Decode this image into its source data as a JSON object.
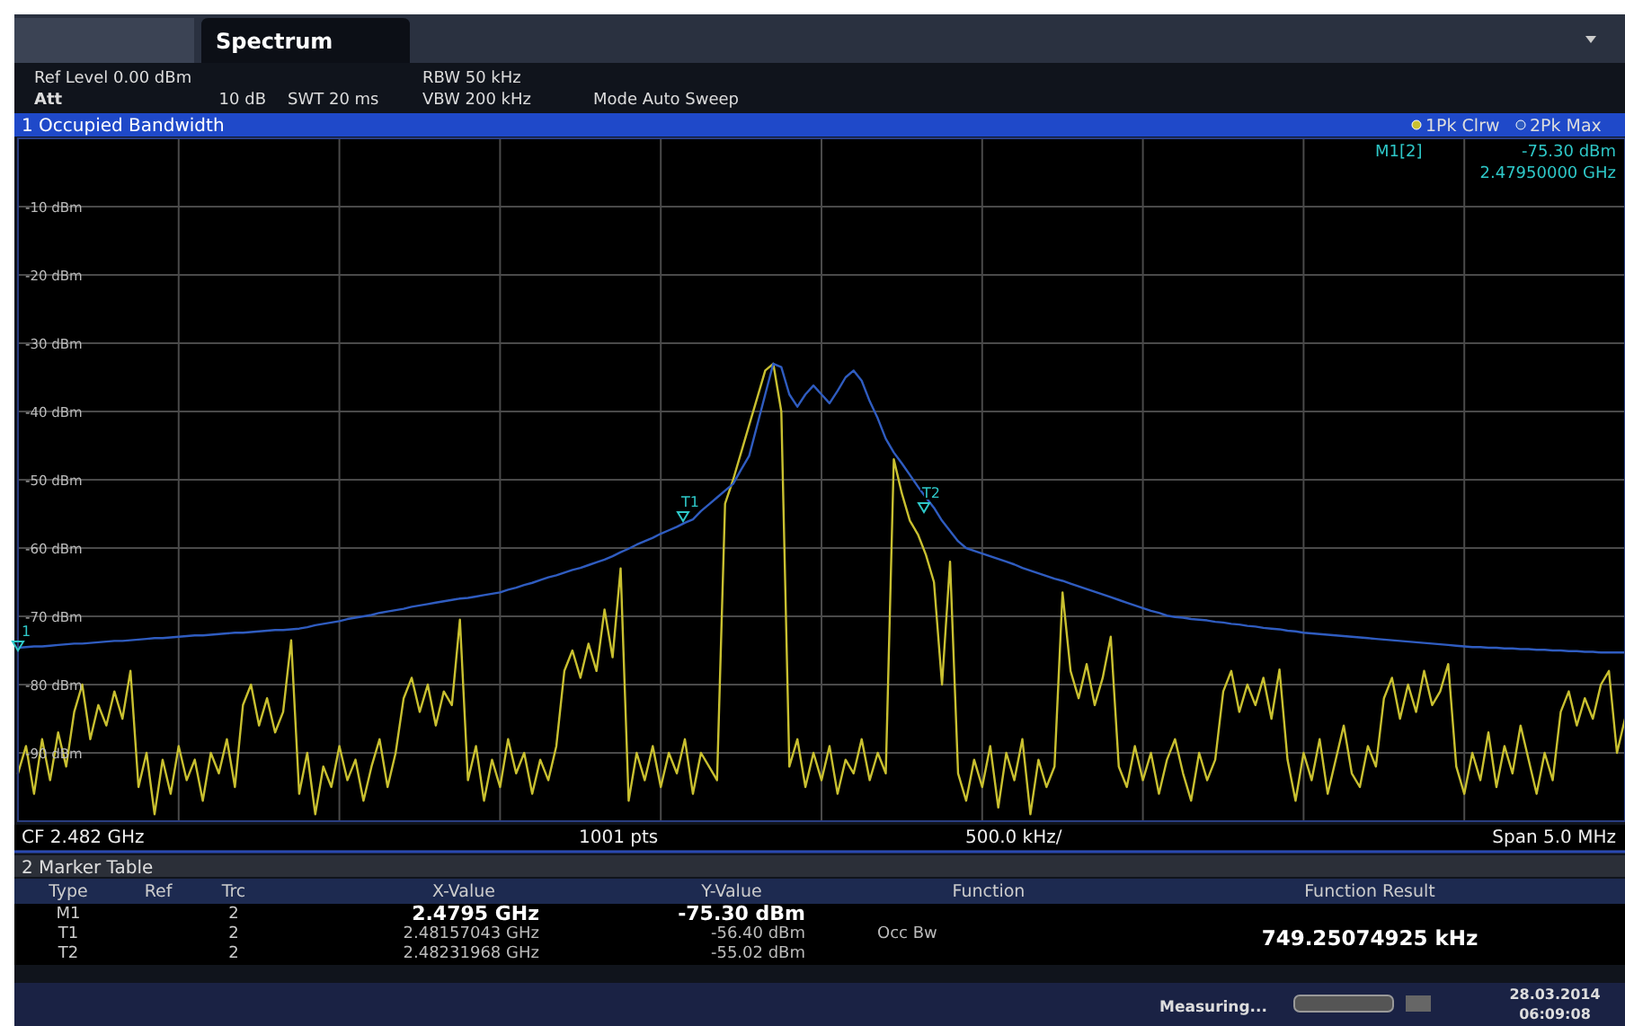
{
  "chart_data": {
    "type": "line",
    "title": "1 Occupied Bandwidth",
    "categories": [
      null,
      null,
      null,
      null,
      null,
      null,
      null,
      null,
      null,
      null,
      null,
      null,
      null,
      null,
      null,
      null,
      null,
      null,
      null,
      null,
      null,
      null,
      null,
      null,
      null,
      null,
      null,
      null,
      null,
      null,
      null,
      null,
      null,
      null,
      null,
      null,
      null,
      null,
      null,
      null,
      null,
      null,
      null,
      null,
      null,
      null,
      null,
      null,
      null,
      null,
      null,
      null,
      null,
      null,
      null,
      null,
      null,
      null,
      null,
      null,
      null,
      null,
      null,
      null,
      null,
      null,
      null,
      null,
      null,
      null,
      null,
      null,
      null,
      null,
      null,
      null,
      null,
      null,
      null,
      null,
      null,
      null,
      null,
      null,
      null,
      null,
      null,
      null,
      null,
      null,
      null,
      null,
      null,
      null,
      null,
      null,
      null,
      null,
      null,
      null,
      null,
      null,
      null,
      null,
      null,
      null,
      null,
      null,
      null,
      null,
      null,
      null,
      null,
      null,
      null,
      null,
      null,
      null,
      null,
      null,
      null,
      null,
      null,
      null,
      null,
      null,
      null,
      null,
      null,
      null,
      null,
      null,
      null,
      null,
      null,
      null,
      null,
      null,
      null,
      null,
      null,
      null,
      null,
      null,
      null,
      null,
      null,
      null,
      null,
      null,
      null,
      null,
      null,
      null,
      null,
      null,
      null,
      null,
      null,
      null,
      null,
      null,
      null,
      null,
      null,
      null,
      null,
      null,
      null,
      null,
      null,
      null,
      null,
      null,
      null,
      null,
      null,
      null,
      null,
      null,
      null,
      null,
      null,
      null,
      null,
      null,
      null,
      null,
      null,
      null,
      null,
      null,
      null,
      null,
      null,
      null,
      null,
      null,
      null,
      null,
      null
    ],
    "ylim": [
      -100,
      0
    ],
    "yticks": [
      {
        "value": -10,
        "label": "-10 dBm"
      },
      {
        "value": -20,
        "label": "-20 dBm"
      },
      {
        "value": -30,
        "label": "-30 dBm"
      },
      {
        "value": -40,
        "label": "-40 dBm"
      },
      {
        "value": -50,
        "label": "-50 dBm"
      },
      {
        "value": -60,
        "label": "-60 dBm"
      },
      {
        "value": -70,
        "label": "-70 dBm"
      },
      {
        "value": -80,
        "label": "-80 dBm"
      },
      {
        "value": -90,
        "label": "-90 dBm"
      }
    ],
    "tick_labels": "y",
    "grid": true,
    "legend": "top right",
    "series": [
      {
        "name": "1Pk Clrw",
        "color": "#c9c030",
        "values": [
          -93,
          -89,
          -96,
          -88,
          -94,
          -87,
          -92,
          -84,
          -80,
          -88,
          -83,
          -86,
          -81,
          -85,
          -78,
          -95,
          -90,
          -99,
          -91,
          -96,
          -89,
          -94,
          -91,
          -97,
          -90,
          -93,
          -88,
          -95,
          -83,
          -80,
          -86,
          -82,
          -87,
          -84,
          -73.5,
          -96,
          -90,
          -99,
          -92,
          -95,
          -89,
          -94,
          -91,
          -97,
          -92,
          -88,
          -95,
          -90,
          -82,
          -79,
          -84,
          -80,
          -86,
          -81,
          -83,
          -70.5,
          -94,
          -89,
          -97,
          -91,
          -95,
          -88,
          -93,
          -90,
          -96,
          -91,
          -94,
          -89,
          -78,
          -75,
          -79,
          -74,
          -78,
          -69,
          -76,
          -63,
          -97,
          -90,
          -94,
          -89,
          -95,
          -90,
          -93,
          -88,
          -96,
          -90,
          -92,
          -94,
          -53.5,
          -50,
          -46,
          -42,
          -38,
          -34,
          -33,
          -40,
          -92,
          -88,
          -95,
          -90,
          -94,
          -89,
          -96,
          -91,
          -93,
          -88,
          -94,
          -90,
          -93,
          -47,
          -52,
          -56,
          -58,
          -61,
          -65,
          -80,
          -62,
          -93,
          -97,
          -91,
          -95,
          -89,
          -98,
          -90,
          -94,
          -88,
          -99,
          -91,
          -95,
          -92,
          -66.5,
          -78,
          -82,
          -77,
          -83,
          -79,
          -73,
          -92,
          -95,
          -89,
          -94,
          -90,
          -96,
          -91,
          -88,
          -93,
          -97,
          -90,
          -94,
          -91,
          -81,
          -78,
          -84,
          -80,
          -83,
          -79,
          -85,
          -77.8,
          -91,
          -97,
          -90,
          -94,
          -88,
          -96,
          -91,
          -86,
          -93,
          -95,
          -89,
          -92,
          -82,
          -79,
          -85,
          -80,
          -84,
          -78,
          -83,
          -81,
          -77,
          -92,
          -96,
          -90,
          -94,
          -87,
          -95,
          -89,
          -93,
          -86,
          -91,
          -96,
          -90,
          -94,
          -84,
          -81,
          -86,
          -82,
          -85,
          -80,
          -78,
          -90,
          -85
        ]
      },
      {
        "name": "2Pk Max",
        "color": "#2f5cc0",
        "values": [
          -74.6,
          -74.5,
          -74.4,
          -74.4,
          -74.3,
          -74.2,
          -74.1,
          -74.0,
          -74.0,
          -73.9,
          -73.8,
          -73.7,
          -73.6,
          -73.6,
          -73.5,
          -73.4,
          -73.3,
          -73.2,
          -73.2,
          -73.1,
          -73.0,
          -72.9,
          -72.8,
          -72.8,
          -72.7,
          -72.6,
          -72.5,
          -72.4,
          -72.4,
          -72.3,
          -72.2,
          -72.1,
          -72.0,
          -72.0,
          -71.9,
          -71.8,
          -71.6,
          -71.3,
          -71.1,
          -70.9,
          -70.7,
          -70.4,
          -70.2,
          -70.0,
          -69.8,
          -69.5,
          -69.3,
          -69.1,
          -68.9,
          -68.6,
          -68.4,
          -68.2,
          -68.0,
          -67.8,
          -67.6,
          -67.4,
          -67.3,
          -67.1,
          -66.9,
          -66.7,
          -66.5,
          -66.1,
          -65.8,
          -65.4,
          -65.1,
          -64.7,
          -64.3,
          -64.0,
          -63.6,
          -63.2,
          -62.9,
          -62.5,
          -62.1,
          -61.7,
          -61.2,
          -60.6,
          -60.1,
          -59.5,
          -59.0,
          -58.5,
          -57.9,
          -57.4,
          -56.9,
          -56.3,
          -55.8,
          -54.6,
          -53.6,
          -52.6,
          -51.6,
          -50.6,
          -48.5,
          -46.5,
          -42,
          -37.5,
          -33,
          -33.5,
          -37.5,
          -39.3,
          -37.5,
          -36.2,
          -37.5,
          -38.8,
          -37,
          -35,
          -34,
          -35.5,
          -38.5,
          -41,
          -44,
          -46,
          -47.6,
          -49.3,
          -51,
          -52.6,
          -54.1,
          -56,
          -57.5,
          -59,
          -60,
          -60.4,
          -60.8,
          -61.2,
          -61.6,
          -62.0,
          -62.4,
          -62.9,
          -63.3,
          -63.7,
          -64.1,
          -64.5,
          -64.8,
          -65.2,
          -65.6,
          -66.0,
          -66.4,
          -66.8,
          -67.2,
          -67.6,
          -68.0,
          -68.4,
          -68.8,
          -69.2,
          -69.5,
          -69.9,
          -70.1,
          -70.2,
          -70.4,
          -70.5,
          -70.6,
          -70.8,
          -70.9,
          -71.1,
          -71.2,
          -71.4,
          -71.5,
          -71.7,
          -71.8,
          -71.9,
          -72.1,
          -72.2,
          -72.4,
          -72.5,
          -72.6,
          -72.7,
          -72.8,
          -72.9,
          -73.0,
          -73.1,
          -73.2,
          -73.3,
          -73.4,
          -73.5,
          -73.6,
          -73.7,
          -73.8,
          -73.9,
          -74.0,
          -74.1,
          -74.2,
          -74.3,
          -74.4,
          -74.5,
          -74.5,
          -74.6,
          -74.6,
          -74.7,
          -74.7,
          -74.8,
          -74.8,
          -74.9,
          -74.9,
          -75.0,
          -75.0,
          -75.1,
          -75.1,
          -75.2,
          -75.2,
          -75.3,
          -75.3,
          -75.3,
          -75.3
        ]
      }
    ],
    "annotations": [
      "Spectrum",
      "Ref Level 0.00 dBm",
      "Att",
      "10 dB",
      "SWT 20 ms",
      "RBW 50 kHz",
      "VBW 200 kHz",
      "Mode Auto Sweep",
      "M1[2]",
      "-75.30 dBm",
      "2.47950000 GHz",
      "CF 2.482 GHz",
      "1001 pts",
      "500.0 kHz/",
      "Span 5.0 MHz",
      "2 Marker Table",
      "Type",
      "Ref",
      "Trc",
      "X-Value",
      "Y-Value",
      "Function",
      "Function Result",
      "M1",
      "2",
      "2.4795 GHz",
      "-75.30 dBm",
      "T1",
      "2",
      "2.48157043 GHz",
      "-56.40 dBm",
      "Occ Bw",
      "749.25074925 kHz",
      "T2",
      "2",
      "2.48231968 GHz",
      "-55.02 dBm",
      "Measuring...",
      "28.03.2014",
      "06:09:08",
      "1",
      "T1",
      "T2"
    ]
  }
}
